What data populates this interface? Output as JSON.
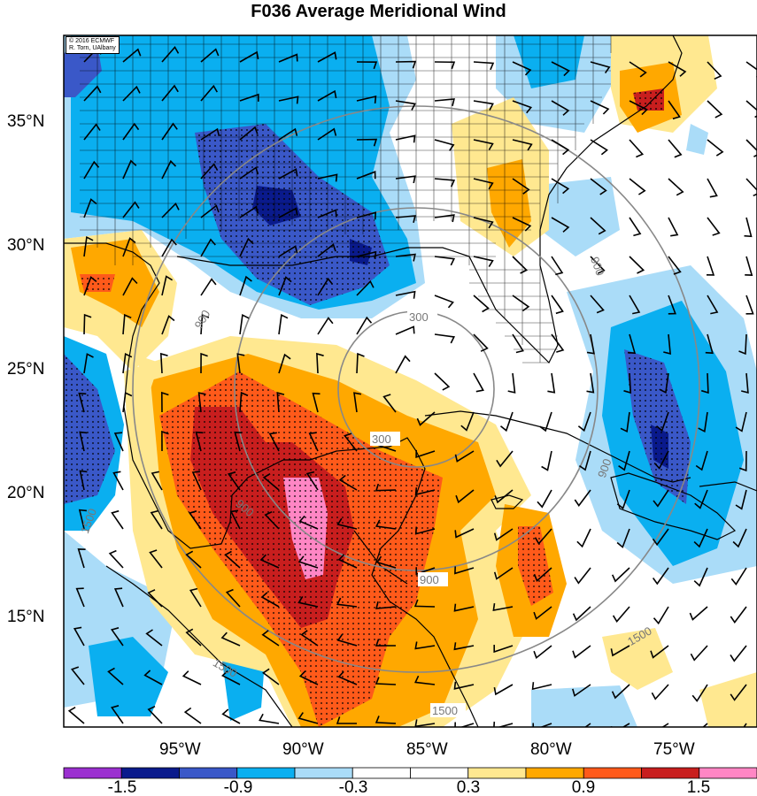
{
  "title": "F036 Average Meridional Wind",
  "credit": {
    "line1": "© 2016 ECMWF",
    "line2": "R. Torn, UAlbany"
  },
  "lat_labels": [
    "35°N",
    "30°N",
    "25°N",
    "20°N",
    "15°N"
  ],
  "lon_labels": [
    "95°W",
    "90°W",
    "85°W",
    "80°W",
    "75°W"
  ],
  "contour_labels": [
    "300",
    "300",
    "900",
    "900",
    "900",
    "900",
    "900",
    "1500",
    "1500",
    "1500",
    "1500"
  ],
  "colorbar": {
    "colors": [
      "#9b30d0",
      "#0a1a8c",
      "#3a58c8",
      "#0aaff0",
      "#aadcf8",
      "#ffffff",
      "#ffffff",
      "#ffe890",
      "#ffa800",
      "#ff5a1a",
      "#c81e1e",
      "#ff86c4"
    ],
    "labels": [
      "-1.5",
      "-0.9",
      "-0.3",
      "0.3",
      "0.9",
      "1.5"
    ]
  },
  "colors": {
    "positive_strong": "#c81e1e",
    "positive_mid": "#ff5a1a",
    "positive_light": "#ffa800",
    "positive_faint": "#ffe890",
    "negative_strong": "#3a58c8",
    "negative_mid": "#0aaff0",
    "negative_faint": "#aadcf8",
    "max": "#ff86c4"
  }
}
